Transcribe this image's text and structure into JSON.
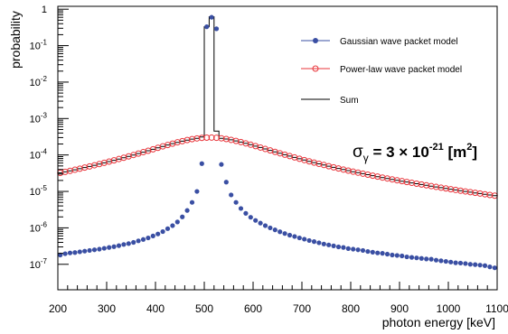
{
  "chart_data": {
    "type": "scatter",
    "title": "",
    "xlabel": "photon energy [keV]",
    "ylabel": "probability",
    "xlim": [
      200,
      1100
    ],
    "ylim": [
      2e-08,
      1.2
    ],
    "log_y": true,
    "grid": false,
    "legend_position": "top-right",
    "x_ticks": [
      200,
      300,
      400,
      500,
      600,
      700,
      800,
      900,
      1000,
      1100
    ],
    "x_tick_labels": [
      "200",
      "300",
      "400",
      "500",
      "600",
      "700",
      "800",
      "900",
      "1000",
      "1100"
    ],
    "y_tick_labels": [
      {
        "base": "10",
        "exp": "-7",
        "value": 1e-07
      },
      {
        "base": "10",
        "exp": "-6",
        "value": 1e-06
      },
      {
        "base": "10",
        "exp": "-5",
        "value": 1e-05
      },
      {
        "base": "10",
        "exp": "-4",
        "value": 0.0001
      },
      {
        "base": "10",
        "exp": "-3",
        "value": 0.001
      },
      {
        "base": "10",
        "exp": "-2",
        "value": 0.01
      },
      {
        "base": "10",
        "exp": "-1",
        "value": 0.1
      },
      {
        "base": "1",
        "exp": "",
        "value": 1
      }
    ],
    "series": [
      {
        "name": "Gaussian wave packet model",
        "color": "#3a4fa3",
        "marker": "filled-circle",
        "points": [
          [
            205,
            1.8e-07
          ],
          [
            215,
            1.95e-07
          ],
          [
            225,
            2.05e-07
          ],
          [
            235,
            2.1e-07
          ],
          [
            245,
            2.2e-07
          ],
          [
            255,
            2.3e-07
          ],
          [
            265,
            2.4e-07
          ],
          [
            275,
            2.5e-07
          ],
          [
            285,
            2.6e-07
          ],
          [
            295,
            2.75e-07
          ],
          [
            305,
            2.9e-07
          ],
          [
            315,
            3.05e-07
          ],
          [
            325,
            3.25e-07
          ],
          [
            335,
            3.5e-07
          ],
          [
            345,
            3.7e-07
          ],
          [
            355,
            4e-07
          ],
          [
            365,
            4.4e-07
          ],
          [
            375,
            4.8e-07
          ],
          [
            385,
            5.3e-07
          ],
          [
            395,
            6e-07
          ],
          [
            405,
            6.8e-07
          ],
          [
            415,
            7.9e-07
          ],
          [
            425,
            9.5e-07
          ],
          [
            435,
            1.15e-06
          ],
          [
            445,
            1.45e-06
          ],
          [
            455,
            2e-06
          ],
          [
            465,
            3e-06
          ],
          [
            475,
            5e-06
          ],
          [
            485,
            1e-05
          ],
          [
            495,
            5.8e-05
          ],
          [
            505,
            0.33
          ],
          [
            515,
            0.6
          ],
          [
            525,
            0.29
          ],
          [
            535,
            5.5e-05
          ],
          [
            545,
            1.8e-05
          ],
          [
            555,
            8e-06
          ],
          [
            565,
            5e-06
          ],
          [
            575,
            3.4e-06
          ],
          [
            585,
            2.5e-06
          ],
          [
            595,
            1.95e-06
          ],
          [
            605,
            1.6e-06
          ],
          [
            615,
            1.35e-06
          ],
          [
            625,
            1.15e-06
          ],
          [
            635,
            1e-06
          ],
          [
            645,
            8.8e-07
          ],
          [
            655,
            7.8e-07
          ],
          [
            665,
            7e-07
          ],
          [
            675,
            6.3e-07
          ],
          [
            685,
            5.8e-07
          ],
          [
            695,
            5.3e-07
          ],
          [
            705,
            4.9e-07
          ],
          [
            715,
            4.5e-07
          ],
          [
            725,
            4.2e-07
          ],
          [
            735,
            3.9e-07
          ],
          [
            745,
            3.6e-07
          ],
          [
            755,
            3.4e-07
          ],
          [
            765,
            3.2e-07
          ],
          [
            775,
            3e-07
          ],
          [
            785,
            2.9e-07
          ],
          [
            795,
            2.7e-07
          ],
          [
            805,
            2.6e-07
          ],
          [
            815,
            2.5e-07
          ],
          [
            825,
            2.4e-07
          ],
          [
            835,
            2.25e-07
          ],
          [
            845,
            2.15e-07
          ],
          [
            855,
            2.05e-07
          ],
          [
            865,
            2e-07
          ],
          [
            875,
            1.9e-07
          ],
          [
            885,
            1.8e-07
          ],
          [
            895,
            1.75e-07
          ],
          [
            905,
            1.7e-07
          ],
          [
            915,
            1.6e-07
          ],
          [
            925,
            1.55e-07
          ],
          [
            935,
            1.5e-07
          ],
          [
            945,
            1.45e-07
          ],
          [
            955,
            1.4e-07
          ],
          [
            965,
            1.38e-07
          ],
          [
            975,
            1.3e-07
          ],
          [
            985,
            1.25e-07
          ],
          [
            995,
            1.2e-07
          ],
          [
            1005,
            1.15e-07
          ],
          [
            1015,
            1.1e-07
          ],
          [
            1025,
            1.08e-07
          ],
          [
            1035,
            1.05e-07
          ],
          [
            1045,
            1e-07
          ],
          [
            1055,
            9.8e-08
          ],
          [
            1065,
            9.5e-08
          ],
          [
            1075,
            9.2e-08
          ],
          [
            1085,
            8.5e-08
          ],
          [
            1095,
            8e-08
          ]
        ]
      },
      {
        "name": "Power-law wave packet model",
        "color": "#e8343a",
        "marker": "open-circle",
        "center": 511,
        "peak": 0.0003,
        "gamma": 200,
        "xmin": 205,
        "xmax": 1095,
        "step": 10
      },
      {
        "name": "Sum",
        "color": "#000000",
        "marker": "step-line",
        "center": 511,
        "peak": 0.0003,
        "gamma": 200,
        "xmin": 200,
        "xmax": 1100,
        "step": 10,
        "spike": [
          {
            "x0": 490,
            "x1": 500,
            "y": 0.00031
          },
          {
            "x0": 500,
            "x1": 510,
            "y": 0.33
          },
          {
            "x0": 510,
            "x1": 520,
            "y": 0.62
          },
          {
            "x0": 520,
            "x1": 530,
            "y": 0.00045
          }
        ]
      }
    ],
    "annotation": {
      "sigma": "σ",
      "sub": "γ",
      "eq": " = 3 × 10",
      "exp": "-21",
      "unit_open": " [m",
      "unit_exp": "2",
      "unit_close": "]"
    }
  }
}
